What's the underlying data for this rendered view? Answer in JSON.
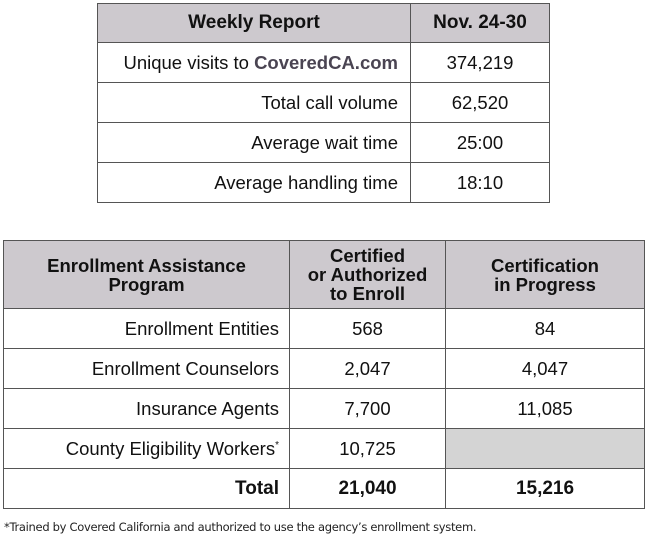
{
  "weekly_report": {
    "header": [
      "Weekly Report",
      "Nov. 24-30"
    ],
    "rows": [
      {
        "label_prefix": "Unique visits to ",
        "label_brand": "CoveredCA.com",
        "value": "374,219"
      },
      {
        "label": "Total call volume",
        "value": "62,520"
      },
      {
        "label": "Average wait time",
        "value": "25:00"
      },
      {
        "label": "Average handling time",
        "value": "18:10"
      }
    ]
  },
  "enrollment": {
    "header": {
      "col1_line1": "Enrollment Assistance",
      "col1_line2": "Program",
      "col2_line1": "Certified",
      "col2_line2": "or Authorized",
      "col2_line3": "to Enroll",
      "col3_line1": "Certification",
      "col3_line2": "in Progress"
    },
    "rows": [
      {
        "label": "Enrollment Entities",
        "certified": "568",
        "in_progress": "84"
      },
      {
        "label": "Enrollment Counselors",
        "certified": "2,047",
        "in_progress": "4,047"
      },
      {
        "label": "Insurance Agents",
        "certified": "7,700",
        "in_progress": "11,085"
      },
      {
        "label": "County Eligibility Workers",
        "sup": "*",
        "certified": "10,725",
        "in_progress": ""
      }
    ],
    "total": {
      "label": "Total",
      "certified": "21,040",
      "in_progress": "15,216"
    }
  },
  "footnote": "*Trained by Covered California and authorized to use the agency’s enrollment system."
}
